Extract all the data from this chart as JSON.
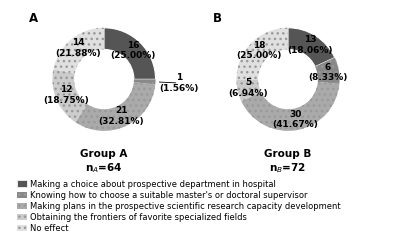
{
  "group_a": {
    "label": "Group A",
    "sublabel": "n$_A$=64",
    "values": [
      16,
      1,
      21,
      12,
      14
    ],
    "percents": [
      "25.00%",
      "1.56%",
      "32.81%",
      "18.75%",
      "21.88%"
    ],
    "counts": [
      16,
      1,
      21,
      12,
      14
    ],
    "startangle": 90
  },
  "group_b": {
    "label": "Group B",
    "sublabel": "n$_B$=72",
    "values": [
      13,
      6,
      30,
      5,
      18
    ],
    "percents": [
      "18.06%",
      "8.33%",
      "41.67%",
      "6.94%",
      "25.00%"
    ],
    "counts": [
      13,
      6,
      30,
      5,
      18
    ],
    "startangle": 90
  },
  "slice_colors": [
    "#555555",
    "#888888",
    "#aaaaaa",
    "#cccccc",
    "#e0e0e0"
  ],
  "slice_hatches": [
    null,
    "...",
    "...",
    "...",
    "..."
  ],
  "legend_labels": [
    "Making a choice about prospective department in hospital",
    "Knowing how to choose a suitable master's or doctoral supervisor",
    "Making plans in the prospective scientific research capacity development",
    "Obtaining the frontiers of favorite specialized fields",
    "No effect"
  ],
  "legend_colors": [
    "#555555",
    "#888888",
    "#aaaaaa",
    "#cccccc",
    "#e0e0e0"
  ],
  "legend_hatches": [
    null,
    "...",
    "...",
    "...",
    "..."
  ],
  "panel_labels": [
    "A",
    "B"
  ],
  "background_color": "#ffffff",
  "label_fontsize": 6.5,
  "legend_fontsize": 6.0,
  "group_fontsize": 7.5,
  "panel_fontsize": 8.5,
  "donut_width": 0.42
}
